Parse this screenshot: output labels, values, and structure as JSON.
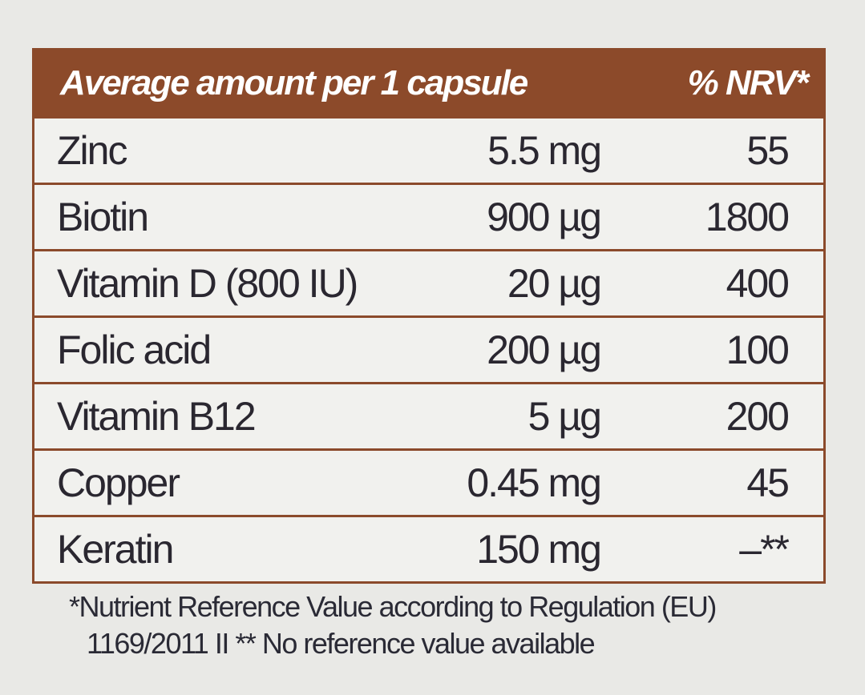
{
  "table": {
    "header": [
      "Average amount per 1 capsule",
      "% NRV*"
    ],
    "rows": [
      [
        "Zinc",
        "5.5 mg",
        "55"
      ],
      [
        "Biotin",
        "900 µg",
        "1800"
      ],
      [
        "Vitamin D (800 IU)",
        "20 µg",
        "400"
      ],
      [
        "Folic acid",
        "200 µg",
        "100"
      ],
      [
        "Vitamin B12",
        "5 µg",
        "200"
      ],
      [
        "Copper",
        "0.45 mg",
        "45"
      ],
      [
        "Keratin",
        "150 mg",
        "–**"
      ]
    ]
  },
  "footnote": [
    "*Nutrient Reference Value according to Regulation (EU)",
    "1169/2011  II ** No reference value available"
  ]
}
